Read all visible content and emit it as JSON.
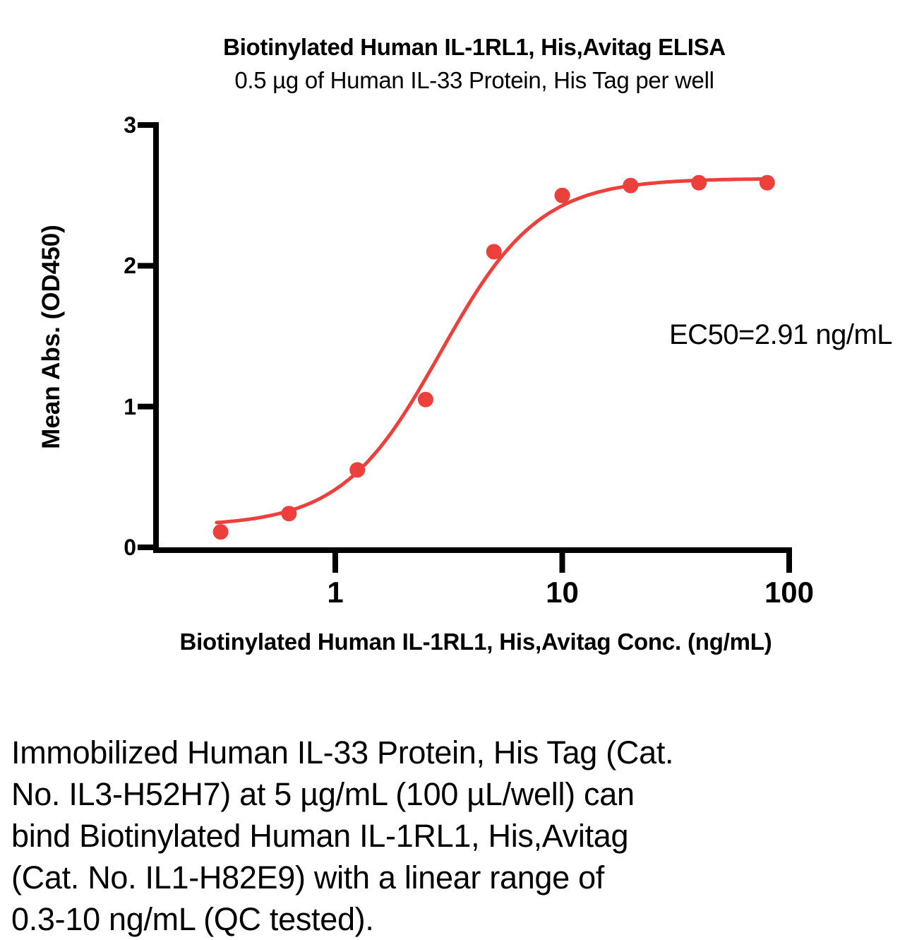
{
  "chart_data": {
    "type": "scatter",
    "title": "Biotinylated Human IL-1RL1, His,Avitag ELISA",
    "subtitle": "0.5 µg of Human IL-33 Protein, His Tag per well",
    "xlabel": "Biotinylated Human IL-1RL1, His,Avitag Conc. (ng/mL)",
    "ylabel": "Mean Abs. (OD450)",
    "x_scale": "log10",
    "xlim": [
      0.16,
      100
    ],
    "ylim": [
      0,
      3
    ],
    "grid": false,
    "legend_position": "none",
    "xticks": [
      {
        "value": 1,
        "label": "1"
      },
      {
        "value": 10,
        "label": "10"
      },
      {
        "value": 100,
        "label": "100"
      }
    ],
    "yticks": [
      {
        "value": 0,
        "label": "0"
      },
      {
        "value": 1,
        "label": "1"
      },
      {
        "value": 2,
        "label": "2"
      },
      {
        "value": 3,
        "label": "3"
      }
    ],
    "series": [
      {
        "name": "Biotinylated Human IL-1RL1, His,Avitag",
        "marker": "circle",
        "x": [
          0.3125,
          0.625,
          1.25,
          2.5,
          5,
          10,
          20,
          40,
          80
        ],
        "y": [
          0.11,
          0.24,
          0.55,
          1.05,
          2.1,
          2.5,
          2.57,
          2.59,
          2.59
        ]
      }
    ],
    "fit_curve": {
      "model": "4PL",
      "bottom": 0.15,
      "top": 2.62,
      "ec50": 2.91,
      "hillslope": 2.0,
      "x_start": 0.3,
      "x_end": 81
    },
    "annotation": "EC50=2.91 ng/mL"
  },
  "colors": {
    "accent": "#EC403C",
    "axis": "#000000",
    "text": "#000000",
    "background": "#FFFFFF"
  },
  "caption": {
    "lines": [
      "Immobilized Human IL-33 Protein, His Tag (Cat.",
      "No. IL3-H52H7) at 5 µg/mL (100 µL/well) can",
      "bind Biotinylated Human IL-1RL1, His,Avitag",
      "(Cat. No. IL1-H82E9) with a linear range of",
      "0.3-10 ng/mL (QC tested)."
    ]
  }
}
